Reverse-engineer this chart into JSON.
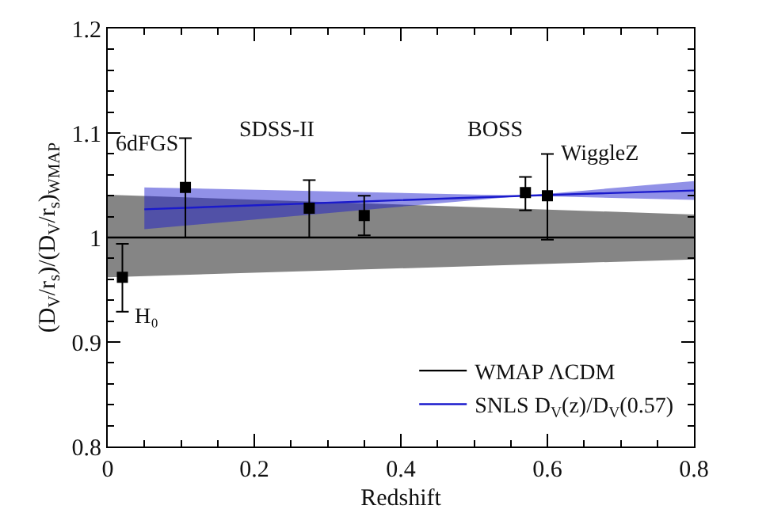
{
  "chart_data": {
    "type": "scatter",
    "xlabel": "Redshift",
    "ylabel": "(D$_{V}$/r$_{s}$)/(D$_{V}$/r$_{s}$)$_{WMAP}$",
    "xlim": [
      0,
      0.8
    ],
    "xticks": [
      0,
      0.2,
      0.4,
      0.6,
      0.8
    ],
    "ylim": [
      0.8,
      1.2
    ],
    "yticks": [
      0.8,
      0.9,
      1,
      1.1,
      1.2
    ],
    "grid": false,
    "legend": "bottom right",
    "marker": "square",
    "series": [
      {
        "type": "line",
        "name": "WMAP ΛCDM",
        "color": "#000000",
        "marker": "none",
        "x": [
          0,
          0.8
        ],
        "values": [
          1,
          1
        ],
        "lower": [
          0.962,
          0.979
        ],
        "upper": [
          1.041,
          1.022
        ]
      },
      {
        "type": "line",
        "name": "SNLS D$_{V}$(z)/D$_{V}$(0.57)",
        "color": "#1a1acc",
        "marker": "none",
        "x": [
          0.05,
          0.57,
          0.8
        ],
        "values": [
          1.027,
          1.04,
          1.045
        ],
        "lower": [
          1.008,
          1.04,
          1.036
        ],
        "upper": [
          1.048,
          1.04,
          1.054
        ]
      },
      {
        "color": "#000000",
        "x": [
          0.02,
          0.106,
          0.35,
          0.57,
          0.6
        ],
        "values": [
          0.962,
          1.048,
          1.021,
          1.043,
          1.04
        ],
        "errors": [
          [
            0.929,
            0.994
          ],
          [
            1.0,
            1.095
          ],
          [
            1.002,
            1.04
          ],
          [
            1.026,
            1.058
          ],
          [
            0.998,
            1.08
          ]
        ]
      },
      {
        "color": "#000000",
        "x": [
          0.275
        ],
        "values": [
          1.028
        ],
        "errors": [
          [
            1.0,
            1.055
          ]
        ]
      }
    ],
    "annotations": [
      {
        "text": "H₀",
        "x": 0.02,
        "y": 0.962
      },
      {
        "text": "6dFGS",
        "x": 0.106,
        "y": 1.095
      },
      {
        "text": "SDSS-II",
        "x": 0.275,
        "y": 1.055
      },
      {
        "text": "BOSS",
        "x": 0.57,
        "y": 1.058
      },
      {
        "text": "WiggleZ",
        "x": 0.6,
        "y": 1.08
      }
    ]
  }
}
